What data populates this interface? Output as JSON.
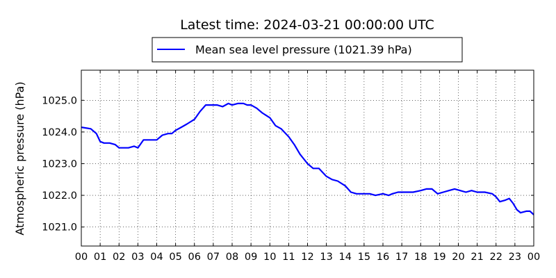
{
  "chart_data": {
    "type": "line",
    "title": "Latest time: 2024-03-21 00:00:00 UTC",
    "xlabel": "",
    "ylabel": "Atmospheric pressure (hPa)",
    "xlim": [
      0,
      24
    ],
    "ylim": [
      1020.4,
      1025.95
    ],
    "grid": true,
    "legend_position": "top-center",
    "x_tick_labels": [
      "00",
      "01",
      "02",
      "03",
      "04",
      "05",
      "06",
      "07",
      "08",
      "09",
      "10",
      "11",
      "12",
      "13",
      "14",
      "15",
      "16",
      "17",
      "18",
      "19",
      "20",
      "21",
      "22",
      "23",
      "00"
    ],
    "y_ticks": [
      1021.0,
      1022.0,
      1023.0,
      1024.0,
      1025.0
    ],
    "y_tick_labels": [
      "1021.0",
      "1022.0",
      "1023.0",
      "1024.0",
      "1025.0"
    ],
    "series": [
      {
        "name": "Mean sea level pressure (1021.39 hPa)",
        "color": "#0000ff",
        "x": [
          0,
          0.5,
          0.8,
          1.0,
          1.2,
          1.5,
          1.8,
          2.0,
          2.2,
          2.5,
          2.8,
          3.0,
          3.3,
          3.6,
          4.0,
          4.3,
          4.6,
          4.8,
          5.0,
          5.3,
          5.6,
          6.0,
          6.3,
          6.6,
          6.9,
          7.2,
          7.5,
          7.8,
          8.0,
          8.3,
          8.6,
          8.8,
          9.0,
          9.3,
          9.6,
          10.0,
          10.3,
          10.6,
          11.0,
          11.3,
          11.6,
          12.0,
          12.3,
          12.6,
          13.0,
          13.3,
          13.6,
          14.0,
          14.3,
          14.6,
          15.0,
          15.3,
          15.6,
          16.0,
          16.3,
          16.5,
          16.8,
          17.2,
          17.6,
          18.0,
          18.3,
          18.6,
          18.9,
          19.2,
          19.5,
          19.8,
          20.1,
          20.4,
          20.7,
          21.0,
          21.4,
          21.8,
          22.0,
          22.2,
          22.5,
          22.7,
          22.9,
          23.1,
          23.3,
          23.6,
          23.8,
          24.0
        ],
        "y": [
          1024.15,
          1024.1,
          1023.95,
          1023.7,
          1023.65,
          1023.65,
          1023.6,
          1023.5,
          1023.5,
          1023.5,
          1023.55,
          1023.5,
          1023.75,
          1023.75,
          1023.75,
          1023.9,
          1023.95,
          1023.95,
          1024.05,
          1024.15,
          1024.25,
          1024.4,
          1024.65,
          1024.85,
          1024.85,
          1024.85,
          1024.8,
          1024.9,
          1024.85,
          1024.9,
          1024.9,
          1024.85,
          1024.85,
          1024.75,
          1024.6,
          1024.45,
          1024.2,
          1024.1,
          1023.85,
          1023.6,
          1023.3,
          1023.0,
          1022.85,
          1022.85,
          1022.6,
          1022.5,
          1022.45,
          1022.3,
          1022.1,
          1022.05,
          1022.05,
          1022.05,
          1022.0,
          1022.05,
          1022.0,
          1022.05,
          1022.1,
          1022.1,
          1022.1,
          1022.15,
          1022.2,
          1022.2,
          1022.05,
          1022.1,
          1022.15,
          1022.2,
          1022.15,
          1022.1,
          1022.15,
          1022.1,
          1022.1,
          1022.05,
          1021.95,
          1021.8,
          1021.85,
          1021.9,
          1021.75,
          1021.55,
          1021.45,
          1021.5,
          1021.5,
          1021.39
        ]
      }
    ]
  }
}
